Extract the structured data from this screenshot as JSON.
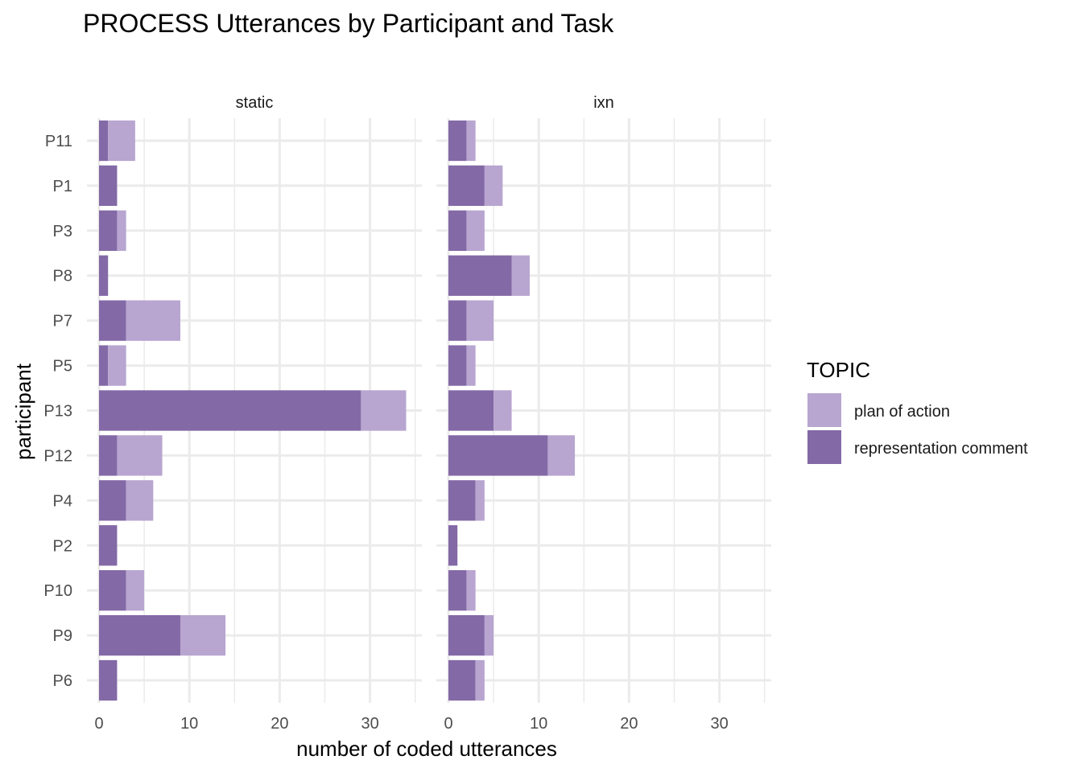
{
  "chart_data": {
    "type": "bar",
    "orientation": "horizontal",
    "stacked": true,
    "title": "PROCESS Utterances by Participant and Task",
    "xlabel": "number of coded utterances",
    "ylabel": "participant",
    "xlim": [
      0,
      35
    ],
    "x_ticks": [
      0,
      10,
      20,
      30
    ],
    "grid": true,
    "legend": {
      "title": "TOPIC",
      "placement": "right",
      "entries": [
        "plan of action",
        "representation comment"
      ]
    },
    "colors": {
      "plan of action": "#b8a5d0",
      "representation comment": "#8369a6"
    },
    "categories": [
      "P11",
      "P1",
      "P3",
      "P8",
      "P7",
      "P5",
      "P13",
      "P12",
      "P4",
      "P2",
      "P10",
      "P9",
      "P6"
    ],
    "facets": [
      {
        "name": "static",
        "series": [
          {
            "name": "representation comment",
            "values": [
              1,
              2,
              2,
              1,
              3,
              1,
              29,
              2,
              3,
              2,
              3,
              9,
              2
            ]
          },
          {
            "name": "plan of action",
            "values": [
              3,
              0,
              1,
              0,
              6,
              2,
              5,
              5,
              3,
              0,
              2,
              5,
              0
            ]
          }
        ]
      },
      {
        "name": "ixn",
        "series": [
          {
            "name": "representation comment",
            "values": [
              2,
              4,
              2,
              7,
              2,
              2,
              5,
              11,
              3,
              1,
              2,
              4,
              3
            ]
          },
          {
            "name": "plan of action",
            "values": [
              1,
              2,
              2,
              2,
              3,
              1,
              2,
              3,
              1,
              0,
              1,
              1,
              1
            ]
          }
        ]
      }
    ]
  }
}
